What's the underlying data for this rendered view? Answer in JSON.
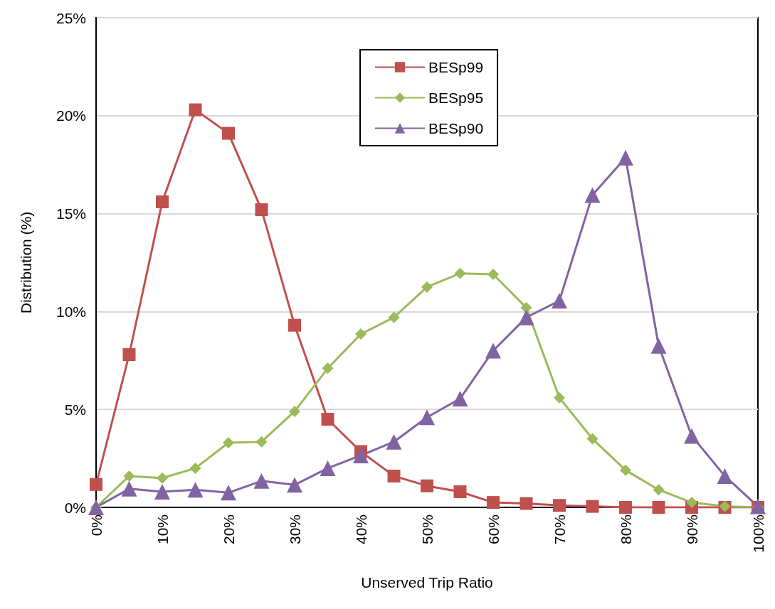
{
  "chart_data": {
    "type": "line",
    "xlabel": "Unserved Trip Ratio",
    "ylabel": "Distribution (%)",
    "x": [
      0,
      5,
      10,
      15,
      20,
      25,
      30,
      35,
      40,
      45,
      50,
      55,
      60,
      65,
      70,
      75,
      80,
      85,
      90,
      95,
      100
    ],
    "series": [
      {
        "name": "BESp99",
        "color": "#c0504d",
        "marker": "square",
        "values": [
          1.17,
          7.8,
          15.6,
          20.3,
          19.1,
          15.2,
          9.3,
          4.5,
          2.85,
          1.6,
          1.1,
          0.8,
          0.25,
          0.2,
          0.1,
          0.05,
          0,
          0,
          0,
          0,
          0
        ]
      },
      {
        "name": "BESp95",
        "color": "#9bbb59",
        "marker": "diamond",
        "values": [
          0,
          1.6,
          1.5,
          2.0,
          3.3,
          3.35,
          4.9,
          7.1,
          8.85,
          9.7,
          11.25,
          11.95,
          11.9,
          10.2,
          5.6,
          3.5,
          1.9,
          0.9,
          0.25,
          0.05,
          0
        ]
      },
      {
        "name": "BESp90",
        "color": "#8064a2",
        "marker": "triangle",
        "values": [
          0,
          0.95,
          0.8,
          0.9,
          0.75,
          1.35,
          1.15,
          2.0,
          2.65,
          3.35,
          4.6,
          5.55,
          8.0,
          9.7,
          10.55,
          15.95,
          17.85,
          8.25,
          3.65,
          1.6,
          0.05
        ]
      }
    ],
    "xlim": [
      0,
      100
    ],
    "xticks": [
      {
        "value": 0,
        "label": "0%"
      },
      {
        "value": 10,
        "label": "10%"
      },
      {
        "value": 20,
        "label": "20%"
      },
      {
        "value": 30,
        "label": "30%"
      },
      {
        "value": 40,
        "label": "40%"
      },
      {
        "value": 50,
        "label": "50%"
      },
      {
        "value": 60,
        "label": "60%"
      },
      {
        "value": 70,
        "label": "70%"
      },
      {
        "value": 80,
        "label": "80%"
      },
      {
        "value": 90,
        "label": "90%"
      },
      {
        "value": 100,
        "label": "100%"
      }
    ],
    "ylim": [
      0,
      25
    ],
    "yticks": [
      {
        "value": 0,
        "label": "0%"
      },
      {
        "value": 5,
        "label": "5%"
      },
      {
        "value": 10,
        "label": "10%"
      },
      {
        "value": 15,
        "label": "15%"
      },
      {
        "value": 20,
        "label": "20%"
      },
      {
        "value": 25,
        "label": "25%"
      }
    ],
    "grid": "y",
    "legend": "top",
    "line_style": "solid"
  }
}
